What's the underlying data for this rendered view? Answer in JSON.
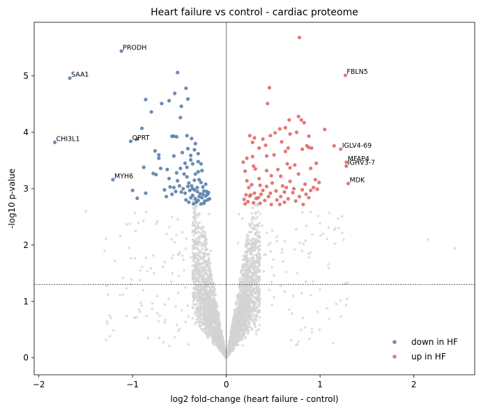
{
  "chart_data": {
    "type": "scatter",
    "title": "Heart failure vs control - cardiac proteome",
    "xlabel": "log2 fold-change (heart failure - control)",
    "ylabel": "-log10 p-value",
    "xlim": [
      -2.05,
      2.65
    ],
    "ylim": [
      -0.3,
      5.95
    ],
    "xticks": [
      -2,
      -1,
      0,
      1,
      2
    ],
    "yticks": [
      0,
      1,
      2,
      3,
      4,
      5
    ],
    "threshold_y": 1.3,
    "vline_x": 0,
    "legend_position": "bottom-right",
    "colors": {
      "down": "#5a80ad",
      "up": "#e06a66",
      "ns": "#d3d3d3"
    },
    "series": [
      {
        "name": "down in HF",
        "color": "#5a80ad",
        "points": [
          [
            -1.83,
            3.82
          ],
          [
            -1.67,
            4.96
          ],
          [
            -1.12,
            5.44
          ],
          [
            -1.21,
            3.16
          ],
          [
            -1.02,
            3.84
          ],
          [
            -0.52,
            5.06
          ],
          [
            -0.43,
            4.78
          ],
          [
            -0.41,
            4.59
          ],
          [
            -0.55,
            4.69
          ],
          [
            -0.86,
            4.58
          ],
          [
            -0.61,
            4.56
          ],
          [
            -0.69,
            4.51
          ],
          [
            -0.48,
            4.46
          ],
          [
            -0.8,
            4.36
          ],
          [
            -0.49,
            4.26
          ],
          [
            -0.9,
            4.07
          ],
          [
            -0.58,
            3.93
          ],
          [
            -0.56,
            3.93
          ],
          [
            -0.53,
            3.92
          ],
          [
            -0.42,
            3.94
          ],
          [
            -0.37,
            3.89
          ],
          [
            -0.95,
            3.88
          ],
          [
            -0.76,
            3.67
          ],
          [
            -0.72,
            3.6
          ],
          [
            -0.72,
            3.54
          ],
          [
            -0.7,
            3.36
          ],
          [
            -0.47,
            3.64
          ],
          [
            -0.41,
            3.71
          ],
          [
            -0.38,
            3.59
          ],
          [
            -0.34,
            3.69
          ],
          [
            -0.3,
            3.62
          ],
          [
            -0.3,
            3.48
          ],
          [
            -0.27,
            3.44
          ],
          [
            -0.88,
            3.38
          ],
          [
            -0.78,
            3.27
          ],
          [
            -0.75,
            3.25
          ],
          [
            -0.63,
            3.34
          ],
          [
            -0.61,
            3.18
          ],
          [
            -1.0,
            2.97
          ],
          [
            -0.95,
            2.83
          ],
          [
            -0.86,
            2.92
          ],
          [
            -0.66,
            2.98
          ],
          [
            -0.64,
            2.86
          ],
          [
            -0.54,
            2.95
          ],
          [
            -0.5,
            3.05
          ],
          [
            -0.48,
            2.94
          ],
          [
            -0.42,
            3.38
          ],
          [
            -0.42,
            3.21
          ],
          [
            -0.4,
            3.1
          ],
          [
            -0.37,
            3.05
          ],
          [
            -0.34,
            2.98
          ],
          [
            -0.3,
            3.3
          ],
          [
            -0.29,
            3.16
          ],
          [
            -0.27,
            3.11
          ],
          [
            -0.25,
            3.03
          ],
          [
            -0.36,
            3.44
          ],
          [
            -0.33,
            3.26
          ],
          [
            -0.36,
            2.88
          ],
          [
            -0.33,
            2.82
          ],
          [
            -0.31,
            2.95
          ],
          [
            -0.3,
            2.79
          ],
          [
            -0.28,
            2.91
          ],
          [
            -0.26,
            2.84
          ],
          [
            -0.24,
            2.96
          ],
          [
            -0.22,
            2.87
          ],
          [
            -0.2,
            2.9
          ],
          [
            -0.18,
            2.82
          ],
          [
            -0.19,
            2.93
          ],
          [
            -0.23,
            2.78
          ],
          [
            -0.4,
            2.76
          ],
          [
            -0.38,
            2.84
          ],
          [
            -0.44,
            2.92
          ],
          [
            -0.46,
            3.0
          ],
          [
            -0.52,
            3.14
          ],
          [
            -0.56,
            3.02
          ],
          [
            -0.58,
            2.9
          ],
          [
            -0.34,
            3.15
          ],
          [
            -0.26,
            3.32
          ],
          [
            -0.22,
            3.08
          ],
          [
            -0.21,
            2.95
          ],
          [
            -0.32,
            2.76
          ],
          [
            -0.27,
            2.73
          ],
          [
            -0.35,
            2.73
          ],
          [
            -0.43,
            2.8
          ],
          [
            -0.24,
            2.74
          ],
          [
            -0.31,
            3.02
          ],
          [
            -0.39,
            2.97
          ],
          [
            -0.29,
            2.86
          ],
          [
            -0.25,
            2.9
          ],
          [
            -0.2,
            2.8
          ],
          [
            -0.49,
            3.36
          ],
          [
            -0.45,
            3.26
          ],
          [
            -0.53,
            3.28
          ],
          [
            -0.38,
            3.51
          ],
          [
            -0.33,
            3.8
          ],
          [
            -0.56,
            3.58
          ],
          [
            -0.44,
            3.45
          ],
          [
            -0.6,
            3.03
          ],
          [
            -0.41,
            3.04
          ],
          [
            -0.36,
            3.0
          ]
        ]
      },
      {
        "name": "up in HF",
        "color": "#e06a66",
        "points": [
          [
            0.78,
            5.68
          ],
          [
            1.27,
            5.01
          ],
          [
            0.46,
            4.79
          ],
          [
            0.44,
            4.51
          ],
          [
            0.77,
            4.28
          ],
          [
            0.67,
            4.22
          ],
          [
            0.8,
            4.22
          ],
          [
            0.83,
            4.17
          ],
          [
            0.63,
            4.08
          ],
          [
            0.57,
            4.06
          ],
          [
            1.05,
            4.05
          ],
          [
            0.52,
            3.99
          ],
          [
            0.75,
            4.0
          ],
          [
            0.68,
            3.97
          ],
          [
            0.47,
            3.94
          ],
          [
            0.25,
            3.94
          ],
          [
            0.88,
            3.93
          ],
          [
            0.3,
            3.9
          ],
          [
            0.39,
            3.88
          ],
          [
            0.59,
            3.83
          ],
          [
            0.28,
            3.82
          ],
          [
            0.42,
            3.77
          ],
          [
            1.15,
            3.76
          ],
          [
            0.86,
            3.76
          ],
          [
            1.22,
            3.7
          ],
          [
            0.81,
            3.7
          ],
          [
            0.88,
            3.73
          ],
          [
            0.66,
            3.72
          ],
          [
            0.35,
            3.72
          ],
          [
            0.91,
            3.72
          ],
          [
            0.63,
            3.66
          ],
          [
            0.51,
            3.6
          ],
          [
            0.43,
            3.58
          ],
          [
            0.28,
            3.57
          ],
          [
            0.22,
            3.54
          ],
          [
            0.18,
            3.47
          ],
          [
            1.28,
            3.47
          ],
          [
            0.96,
            3.45
          ],
          [
            0.65,
            3.44
          ],
          [
            0.73,
            3.42
          ],
          [
            0.29,
            3.4
          ],
          [
            1.28,
            3.4
          ],
          [
            0.68,
            3.37
          ],
          [
            0.9,
            3.36
          ],
          [
            0.55,
            3.34
          ],
          [
            0.31,
            3.35
          ],
          [
            0.2,
            3.31
          ],
          [
            0.77,
            3.26
          ],
          [
            0.48,
            3.23
          ],
          [
            0.58,
            3.22
          ],
          [
            0.35,
            3.18
          ],
          [
            0.95,
            3.16
          ],
          [
            0.22,
            3.14
          ],
          [
            0.99,
            3.11
          ],
          [
            1.3,
            3.09
          ],
          [
            0.84,
            3.08
          ],
          [
            0.27,
            3.07
          ],
          [
            0.36,
            3.06
          ],
          [
            0.43,
            3.04
          ],
          [
            0.64,
            3.02
          ],
          [
            0.72,
            3.0
          ],
          [
            0.81,
            2.98
          ],
          [
            0.9,
            2.97
          ],
          [
            0.97,
            2.99
          ],
          [
            0.53,
            2.96
          ],
          [
            0.62,
            2.94
          ],
          [
            0.71,
            2.93
          ],
          [
            0.47,
            2.92
          ],
          [
            0.3,
            2.92
          ],
          [
            0.37,
            2.9
          ],
          [
            0.21,
            2.89
          ],
          [
            0.25,
            2.87
          ],
          [
            0.58,
            2.86
          ],
          [
            0.78,
            2.86
          ],
          [
            0.45,
            2.86
          ],
          [
            0.88,
            2.84
          ],
          [
            0.32,
            2.83
          ],
          [
            0.66,
            2.82
          ],
          [
            0.19,
            2.81
          ],
          [
            0.54,
            2.8
          ],
          [
            0.41,
            2.79
          ],
          [
            0.74,
            2.78
          ],
          [
            0.23,
            2.77
          ],
          [
            0.62,
            2.76
          ],
          [
            0.29,
            2.75
          ],
          [
            0.36,
            2.74
          ],
          [
            0.2,
            2.73
          ],
          [
            0.48,
            2.72
          ],
          [
            0.57,
            2.72
          ],
          [
            0.82,
            2.72
          ],
          [
            0.26,
            2.89
          ],
          [
            0.49,
            3.1
          ],
          [
            0.68,
            3.13
          ],
          [
            0.39,
            2.97
          ],
          [
            0.85,
            2.9
          ],
          [
            0.93,
            3.02
          ],
          [
            0.34,
            2.84
          ],
          [
            0.6,
            3.05
          ],
          [
            0.43,
            3.32
          ],
          [
            0.24,
            3.02
          ]
        ]
      }
    ],
    "gene_labels": [
      {
        "label": "PRODH",
        "x": -1.12,
        "y": 5.44
      },
      {
        "label": "SAA1",
        "x": -1.67,
        "y": 4.96
      },
      {
        "label": "CHI3L1",
        "x": -1.83,
        "y": 3.82
      },
      {
        "label": "QPRT",
        "x": -1.02,
        "y": 3.84
      },
      {
        "label": "MYH6",
        "x": -1.21,
        "y": 3.16
      },
      {
        "label": "FBLN5",
        "x": 1.27,
        "y": 5.01
      },
      {
        "label": "IGLV4-69",
        "x": 1.22,
        "y": 3.7
      },
      {
        "label": "MFAP4",
        "x": 1.28,
        "y": 3.47
      },
      {
        "label": "IGHV3-7",
        "x": 1.28,
        "y": 3.4
      },
      {
        "label": "MDK",
        "x": 1.3,
        "y": 3.09
      }
    ],
    "legend": [
      {
        "label": "down in HF",
        "color": "#5a80ad"
      },
      {
        "label": "up in HF",
        "color": "#e06a66"
      }
    ]
  }
}
